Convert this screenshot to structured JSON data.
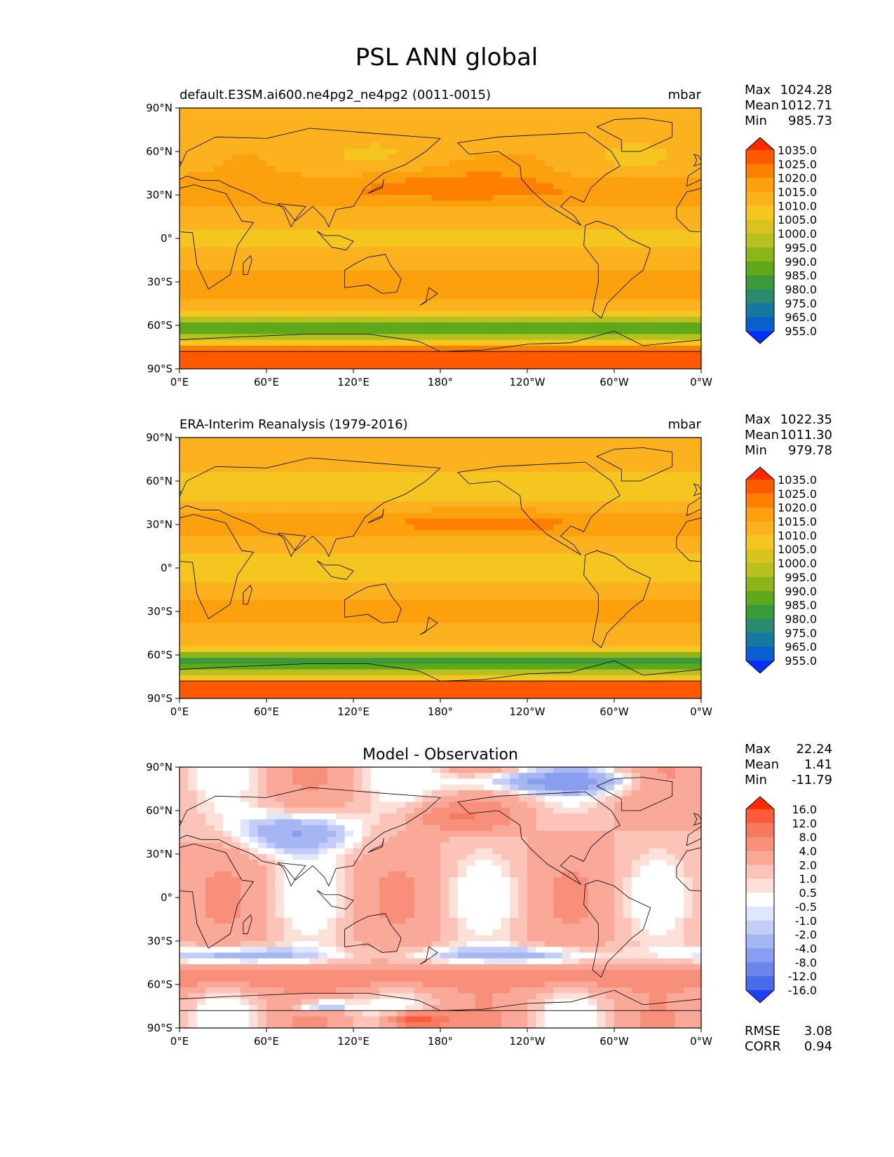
{
  "figure_title": "PSL ANN global",
  "lon_ticks": [
    "0°E",
    "60°E",
    "120°E",
    "180°",
    "120°W",
    "60°W",
    "0°W"
  ],
  "lat_ticks": [
    "90°N",
    "60°N",
    "30°N",
    "0°",
    "30°S",
    "60°S",
    "90°S"
  ],
  "chart_data": [
    {
      "type": "heatmap",
      "name": "model",
      "title_left": "default.E3SM.ai600.ne4pg2_ne4pg2 (0011-0015)",
      "title_center": "",
      "units": "mbar",
      "stats": [
        {
          "label": "Max",
          "value": "1024.28"
        },
        {
          "label": "Mean",
          "value": "1012.71"
        },
        {
          "label": "Min",
          "value": "985.73"
        }
      ],
      "colorbar": {
        "levels": [
          "1035.0",
          "1025.0",
          "1020.0",
          "1015.0",
          "1010.0",
          "1005.0",
          "1000.0",
          "995.0",
          "990.0",
          "985.0",
          "980.0",
          "975.0",
          "965.0",
          "955.0"
        ],
        "colors": [
          "#ff2a00",
          "#ff5a00",
          "#ff7f00",
          "#fda00e",
          "#fbb21e",
          "#f5c61f",
          "#d9c41f",
          "#b8c020",
          "#8db51a",
          "#5fa81a",
          "#3a9a3a",
          "#2a8a6e",
          "#1578a0",
          "#0a5fcf",
          "#0030ff"
        ]
      },
      "xlabel": "",
      "ylabel": "",
      "xlim": [
        0,
        360
      ],
      "ylim": [
        -90,
        90
      ]
    },
    {
      "type": "heatmap",
      "name": "observation",
      "title_left": "ERA-Interim Reanalysis (1979-2016)",
      "title_center": "",
      "units": "mbar",
      "stats": [
        {
          "label": "Max",
          "value": "1022.35"
        },
        {
          "label": "Mean",
          "value": "1011.30"
        },
        {
          "label": "Min",
          "value": "979.78"
        }
      ],
      "colorbar": {
        "levels": [
          "1035.0",
          "1025.0",
          "1020.0",
          "1015.0",
          "1010.0",
          "1005.0",
          "1000.0",
          "995.0",
          "990.0",
          "985.0",
          "980.0",
          "975.0",
          "965.0",
          "955.0"
        ],
        "colors": [
          "#ff2a00",
          "#ff5a00",
          "#ff7f00",
          "#fda00e",
          "#fbb21e",
          "#f5c61f",
          "#d9c41f",
          "#b8c020",
          "#8db51a",
          "#5fa81a",
          "#3a9a3a",
          "#2a8a6e",
          "#1578a0",
          "#0a5fcf",
          "#0030ff"
        ]
      },
      "xlabel": "",
      "ylabel": "",
      "xlim": [
        0,
        360
      ],
      "ylim": [
        -90,
        90
      ]
    },
    {
      "type": "heatmap",
      "name": "difference",
      "title_left": "",
      "title_center": "Model - Observation",
      "units": "",
      "stats": [
        {
          "label": "Max",
          "value": "22.24"
        },
        {
          "label": "Mean",
          "value": "1.41"
        },
        {
          "label": "Min",
          "value": "-11.79"
        }
      ],
      "colorbar": {
        "levels": [
          "16.0",
          "12.0",
          "8.0",
          "4.0",
          "2.0",
          "1.0",
          "0.5",
          "-0.5",
          "-1.0",
          "-2.0",
          "-4.0",
          "-8.0",
          "-12.0",
          "-16.0"
        ],
        "colors": [
          "#ff2a00",
          "#ff5a3a",
          "#f57a5e",
          "#f88f7a",
          "#faa898",
          "#fcc3b8",
          "#fde0d8",
          "#ffffff",
          "#e0e6fb",
          "#c3cdf7",
          "#a6b6f3",
          "#8a9eef",
          "#6c85eb",
          "#4a6be8",
          "#1f3fff"
        ]
      },
      "error_stats": [
        {
          "label": "RMSE",
          "value": "3.08"
        },
        {
          "label": "CORR",
          "value": "0.94"
        }
      ],
      "xlabel": "",
      "ylabel": "",
      "xlim": [
        0,
        360
      ],
      "ylim": [
        -90,
        90
      ]
    }
  ]
}
